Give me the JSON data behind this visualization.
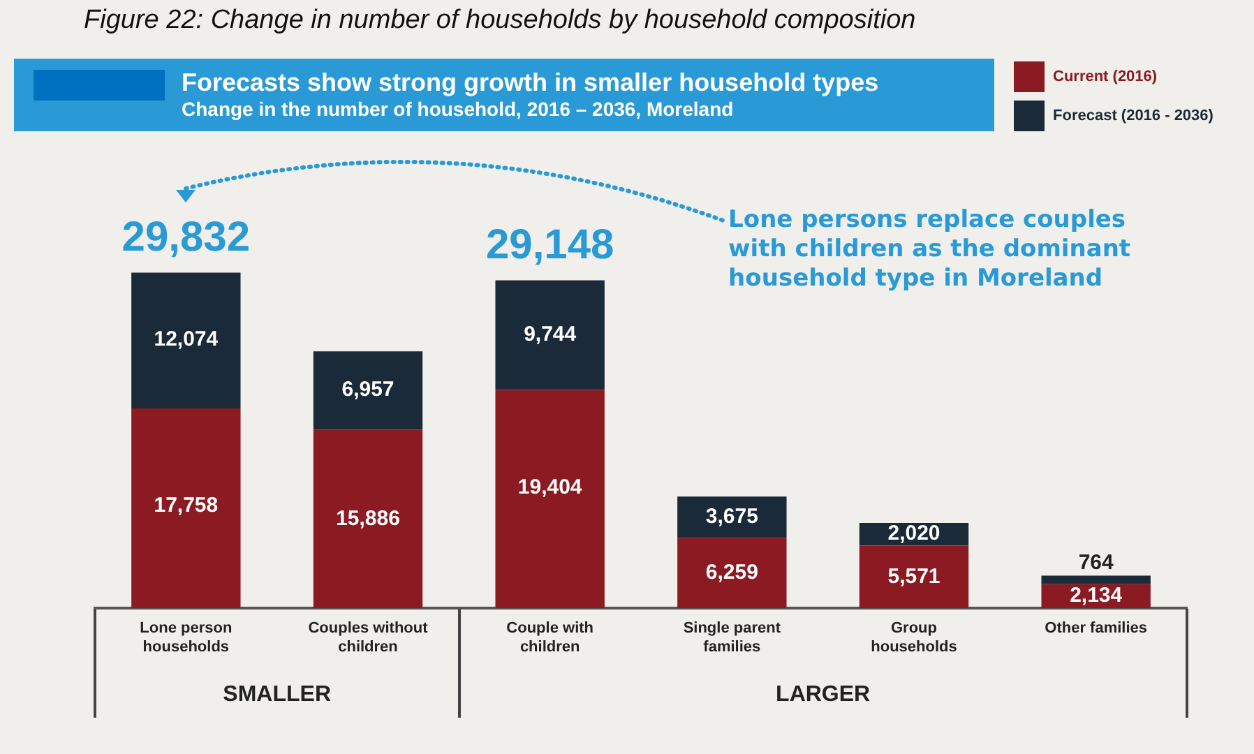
{
  "chart_data": {
    "type": "bar",
    "stacked": true,
    "title": "Forecasts show strong growth in smaller household types",
    "subtitle": "Change in the number of household, 2016 – 2036, Moreland",
    "categories": [
      "Lone person households",
      "Couples without children",
      "Couple with children",
      "Single parent families",
      "Group households",
      "Other families"
    ],
    "series": [
      {
        "name": "Current (2016)",
        "color": "#8b1a22",
        "values": [
          17758,
          15886,
          19404,
          6259,
          5571,
          2134
        ],
        "value_labels": [
          "17,758",
          "15,886",
          "19,404",
          "6,259",
          "5,571",
          "2,134"
        ]
      },
      {
        "name": "Forecast (2016 - 2036)",
        "color": "#1b2a38",
        "values": [
          12074,
          6957,
          9744,
          3675,
          2020,
          764
        ],
        "value_labels": [
          "12,074",
          "6,957",
          "9,744",
          "3,675",
          "2,020",
          "764"
        ]
      }
    ],
    "totals": [
      "29,832",
      null,
      "29,148",
      null,
      null,
      null
    ],
    "legend": "top right",
    "annotations": [
      "Figure 22: Change in number of households by household composition",
      "SMALLER",
      "LARGER",
      "Lone persons replace couples with children as the dominant household type in Moreland"
    ]
  }
}
